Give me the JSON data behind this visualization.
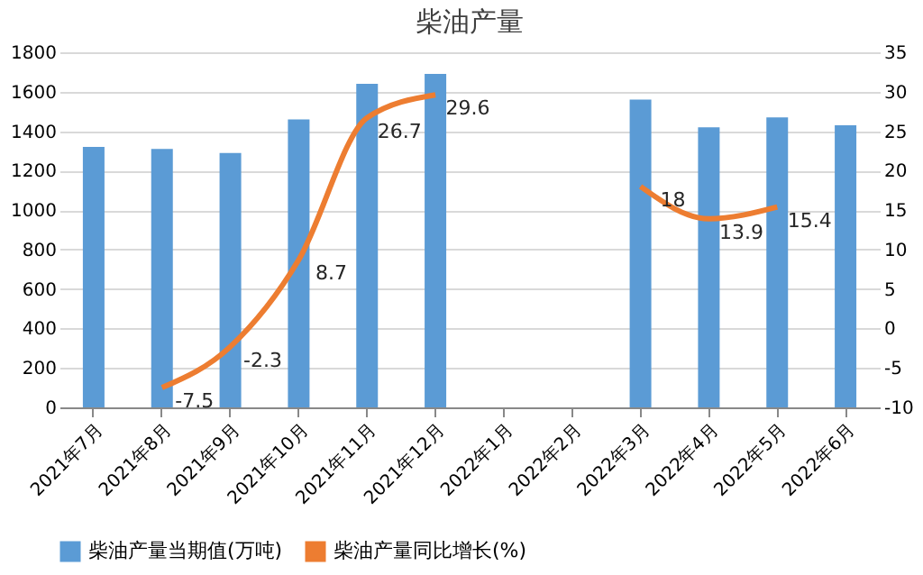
{
  "chart_data": {
    "type": "bar",
    "title": "柴油产量",
    "categories": [
      "2021年7月",
      "2021年8月",
      "2021年9月",
      "2021年10月",
      "2021年11月",
      "2021年12月",
      "2022年1月",
      "2022年2月",
      "2022年3月",
      "2022年4月",
      "2022年5月",
      "2022年6月"
    ],
    "series": [
      {
        "name": "柴油产量当期值(万吨)",
        "color": "#5b9bd5",
        "values": [
          1320,
          1310,
          1290,
          1460,
          1640,
          1690,
          null,
          null,
          1560,
          1420,
          1470,
          1430
        ]
      },
      {
        "name": "柴油产量同比增长(%)",
        "type": "line",
        "axis": "y2",
        "color": "#ed7d31",
        "values": [
          null,
          -7.5,
          -2.3,
          8.7,
          26.7,
          29.6,
          null,
          null,
          18,
          13.9,
          15.4,
          null
        ],
        "value_labels": [
          null,
          "-7.5",
          "-2.3",
          "8.7",
          "26.7",
          "29.6",
          null,
          null,
          "18",
          "13.9",
          "15.4",
          null
        ]
      }
    ],
    "ylim": [
      0,
      1800
    ],
    "yticks": [
      0,
      200,
      400,
      600,
      800,
      1000,
      1200,
      1400,
      1600,
      1800
    ],
    "y2lim": [
      -10,
      35
    ],
    "y2ticks": [
      -10,
      -5,
      0,
      5,
      10,
      15,
      20,
      25,
      30,
      35
    ],
    "grid": "y",
    "legend": "bottom",
    "marker": "none",
    "line_style": "solid"
  }
}
